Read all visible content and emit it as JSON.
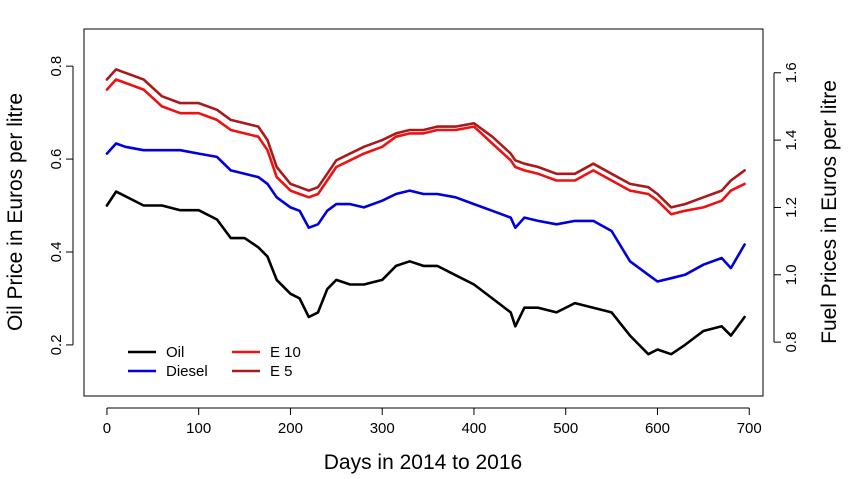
{
  "chart_data": {
    "type": "line",
    "xlabel": "Days in 2014 to 2016",
    "ylabel_left": "Oil Price in Euros per litre",
    "ylabel_right": "Fuel Prices in Euros per litre",
    "xlim": [
      -25,
      715
    ],
    "ylim_left": [
      0.09,
      0.88
    ],
    "ylim_right": [
      0.64,
      1.73
    ],
    "x_ticks": [
      0,
      100,
      200,
      300,
      400,
      500,
      600,
      700
    ],
    "y_ticks_left": [
      0.2,
      0.4,
      0.6,
      0.8
    ],
    "y_ticks_right": [
      0.8,
      1.0,
      1.2,
      1.4,
      1.6
    ],
    "y_tick_labels_left": [
      "0.2",
      "0.4",
      "0.6",
      "0.8"
    ],
    "y_tick_labels_right": [
      "0.8",
      "1.0",
      "1.2",
      "1.4",
      "1.6"
    ],
    "legend_position": "bottom-left",
    "grid": false,
    "series": [
      {
        "name": "Oil",
        "axis": "left",
        "color": "#000000",
        "x": [
          0,
          10,
          20,
          40,
          60,
          80,
          100,
          120,
          135,
          150,
          165,
          175,
          185,
          200,
          210,
          220,
          230,
          240,
          250,
          265,
          280,
          300,
          315,
          330,
          345,
          360,
          380,
          400,
          420,
          440,
          445,
          455,
          470,
          490,
          510,
          530,
          550,
          570,
          590,
          600,
          615,
          630,
          650,
          670,
          680,
          695
        ],
        "y": [
          0.5,
          0.53,
          0.52,
          0.5,
          0.5,
          0.49,
          0.49,
          0.47,
          0.43,
          0.43,
          0.41,
          0.39,
          0.34,
          0.31,
          0.3,
          0.26,
          0.27,
          0.32,
          0.34,
          0.33,
          0.33,
          0.34,
          0.37,
          0.38,
          0.37,
          0.37,
          0.35,
          0.33,
          0.3,
          0.27,
          0.24,
          0.28,
          0.28,
          0.27,
          0.29,
          0.28,
          0.27,
          0.22,
          0.18,
          0.19,
          0.18,
          0.2,
          0.23,
          0.24,
          0.22,
          0.26
        ]
      },
      {
        "name": "Diesel",
        "axis": "right",
        "color": "#0000dd",
        "x": [
          0,
          10,
          20,
          40,
          60,
          80,
          100,
          120,
          135,
          150,
          165,
          175,
          185,
          200,
          210,
          220,
          230,
          240,
          250,
          265,
          280,
          300,
          315,
          330,
          345,
          360,
          380,
          400,
          420,
          440,
          445,
          455,
          470,
          490,
          510,
          530,
          550,
          570,
          590,
          600,
          615,
          630,
          650,
          670,
          680,
          695
        ],
        "y": [
          1.36,
          1.39,
          1.38,
          1.37,
          1.37,
          1.37,
          1.36,
          1.35,
          1.31,
          1.3,
          1.29,
          1.27,
          1.23,
          1.2,
          1.19,
          1.14,
          1.15,
          1.19,
          1.21,
          1.21,
          1.2,
          1.22,
          1.24,
          1.25,
          1.24,
          1.24,
          1.23,
          1.21,
          1.19,
          1.17,
          1.14,
          1.17,
          1.16,
          1.15,
          1.16,
          1.16,
          1.13,
          1.04,
          1.0,
          0.98,
          0.99,
          1.0,
          1.03,
          1.05,
          1.02,
          1.09
        ]
      },
      {
        "name": "E 10",
        "axis": "right",
        "color": "#ee1111",
        "x": [
          0,
          10,
          20,
          40,
          60,
          80,
          100,
          120,
          135,
          150,
          165,
          175,
          185,
          200,
          210,
          220,
          230,
          240,
          250,
          265,
          280,
          300,
          315,
          330,
          345,
          360,
          380,
          400,
          420,
          440,
          445,
          455,
          470,
          490,
          510,
          530,
          550,
          570,
          590,
          600,
          615,
          630,
          650,
          670,
          680,
          695
        ],
        "y": [
          1.55,
          1.58,
          1.57,
          1.55,
          1.5,
          1.48,
          1.48,
          1.46,
          1.43,
          1.42,
          1.41,
          1.37,
          1.29,
          1.25,
          1.24,
          1.23,
          1.24,
          1.28,
          1.32,
          1.34,
          1.36,
          1.38,
          1.41,
          1.42,
          1.42,
          1.43,
          1.43,
          1.44,
          1.39,
          1.34,
          1.32,
          1.31,
          1.3,
          1.28,
          1.28,
          1.31,
          1.28,
          1.25,
          1.24,
          1.22,
          1.18,
          1.19,
          1.2,
          1.22,
          1.25,
          1.27
        ]
      },
      {
        "name": "E 5",
        "axis": "right",
        "color": "#aa1a1a",
        "x": [
          0,
          10,
          20,
          40,
          60,
          80,
          100,
          120,
          135,
          150,
          165,
          175,
          185,
          200,
          210,
          220,
          230,
          240,
          250,
          265,
          280,
          300,
          315,
          330,
          345,
          360,
          380,
          400,
          420,
          440,
          445,
          455,
          470,
          490,
          510,
          530,
          550,
          570,
          590,
          600,
          615,
          630,
          650,
          670,
          680,
          695
        ],
        "y": [
          1.58,
          1.61,
          1.6,
          1.58,
          1.53,
          1.51,
          1.51,
          1.49,
          1.46,
          1.45,
          1.44,
          1.4,
          1.32,
          1.27,
          1.26,
          1.25,
          1.26,
          1.3,
          1.34,
          1.36,
          1.38,
          1.4,
          1.42,
          1.43,
          1.43,
          1.44,
          1.44,
          1.45,
          1.41,
          1.36,
          1.34,
          1.33,
          1.32,
          1.3,
          1.3,
          1.33,
          1.3,
          1.27,
          1.26,
          1.24,
          1.2,
          1.21,
          1.23,
          1.25,
          1.28,
          1.31
        ]
      }
    ]
  }
}
